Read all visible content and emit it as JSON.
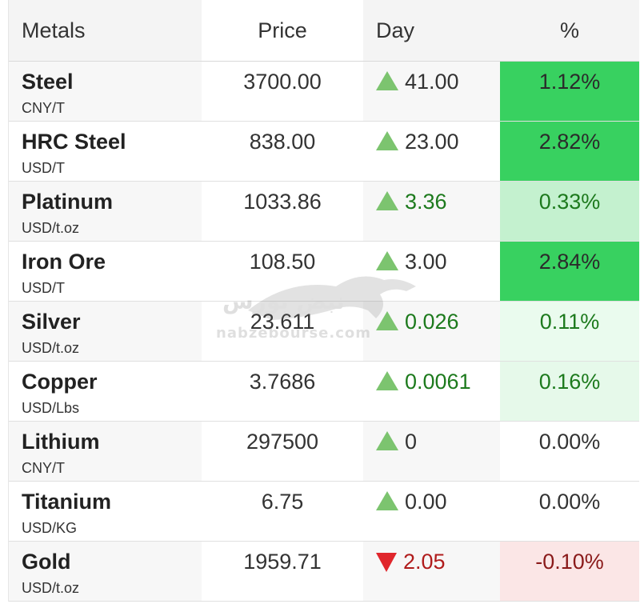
{
  "header": {
    "metals": "Metals",
    "price": "Price",
    "day": "Day",
    "percent": "%"
  },
  "rows": [
    {
      "name": "Steel",
      "unit": "CNY/T",
      "price": "3700.00",
      "direction": "up",
      "day": "41.00",
      "day_color": "#333333",
      "pct": "1.12%",
      "pct_color": "#2b2b2b",
      "pct_bg": "#38d160"
    },
    {
      "name": "HRC Steel",
      "unit": "USD/T",
      "price": "838.00",
      "direction": "up",
      "day": "23.00",
      "day_color": "#333333",
      "pct": "2.82%",
      "pct_color": "#2b2b2b",
      "pct_bg": "#38d160"
    },
    {
      "name": "Platinum",
      "unit": "USD/t.oz",
      "price": "1033.86",
      "direction": "up",
      "day": "3.36",
      "day_color": "#1d7a1d",
      "pct": "0.33%",
      "pct_color": "#1d7a1d",
      "pct_bg": "#c4f1cf"
    },
    {
      "name": "Iron Ore",
      "unit": "USD/T",
      "price": "108.50",
      "direction": "up",
      "day": "3.00",
      "day_color": "#333333",
      "pct": "2.84%",
      "pct_color": "#2b2b2b",
      "pct_bg": "#38d160"
    },
    {
      "name": "Silver",
      "unit": "USD/t.oz",
      "price": "23.611",
      "direction": "up",
      "day": "0.026",
      "day_color": "#1d7a1d",
      "pct": "0.11%",
      "pct_color": "#1d7a1d",
      "pct_bg": "#eafbee"
    },
    {
      "name": "Copper",
      "unit": "USD/Lbs",
      "price": "3.7686",
      "direction": "up",
      "day": "0.0061",
      "day_color": "#1d7a1d",
      "pct": "0.16%",
      "pct_color": "#1d7a1d",
      "pct_bg": "#e6f9ea"
    },
    {
      "name": "Lithium",
      "unit": "CNY/T",
      "price": "297500",
      "direction": "up",
      "day": "0",
      "day_color": "#333333",
      "pct": "0.00%",
      "pct_color": "#333333",
      "pct_bg": "#ffffff"
    },
    {
      "name": "Titanium",
      "unit": "USD/KG",
      "price": "6.75",
      "direction": "up",
      "day": "0.00",
      "day_color": "#333333",
      "pct": "0.00%",
      "pct_color": "#333333",
      "pct_bg": "#ffffff"
    },
    {
      "name": "Gold",
      "unit": "USD/t.oz",
      "price": "1959.71",
      "direction": "down",
      "day": "2.05",
      "day_color": "#b01c1c",
      "pct": "-0.10%",
      "pct_color": "#8a1a1a",
      "pct_bg": "#fbe6e6"
    }
  ],
  "watermark": {
    "brand": "نبض بورس",
    "site": "nabzebourse.com",
    "icon": "bull-logo-icon"
  }
}
